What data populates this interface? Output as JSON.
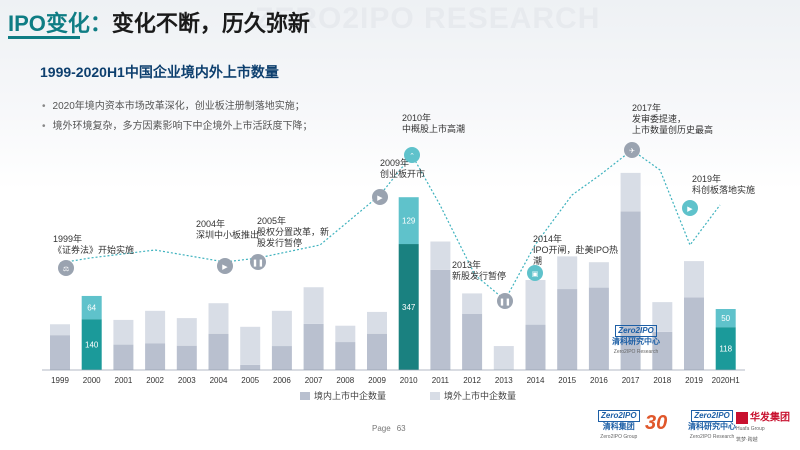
{
  "header": {
    "title_prefix": "IPO变化：",
    "title_rest": "变化不断，历久弥新",
    "watermark": "ZERO2IPO RESEARCH"
  },
  "chart_data": {
    "type": "bar",
    "title": "1999-2020H1中国企业境内外上市数量",
    "categories": [
      "1999",
      "2000",
      "2001",
      "2002",
      "2003",
      "2004",
      "2005",
      "2006",
      "2007",
      "2008",
      "2009",
      "2010",
      "2011",
      "2012",
      "2013",
      "2014",
      "2015",
      "2016",
      "2017",
      "2018",
      "2019",
      "2020H1"
    ],
    "series": [
      {
        "name": "境内上市中企数量",
        "values": [
          96,
          140,
          70,
          73,
          67,
          100,
          14,
          66,
          127,
          77,
          100,
          347,
          276,
          155,
          0,
          125,
          223,
          227,
          437,
          105,
          200,
          118
        ]
      },
      {
        "name": "境外上市中企数量",
        "values": [
          30,
          64,
          68,
          90,
          76,
          84,
          105,
          97,
          101,
          45,
          60,
          129,
          78,
          56,
          66,
          123,
          90,
          70,
          106,
          82,
          100,
          50
        ]
      }
    ],
    "data_labels": {
      "2000": {
        "domestic": "140",
        "overseas": "64"
      },
      "2010": {
        "domestic": "347",
        "overseas": "129"
      },
      "2020H1": {
        "domestic": "118",
        "overseas": "50"
      }
    },
    "ylim": [
      0,
      560
    ],
    "legend": "bottom",
    "colors": {
      "domestic": "#b9c0cf",
      "overseas": "#d8dde6",
      "highlight_domestic": "#1b9a9a",
      "highlight_overseas": "#5fc2cb",
      "highlight_2010_domestic": "#1a8180",
      "trend_line": "#29aab7"
    },
    "annotations": [
      {
        "year": "1999",
        "lines": [
          "1999年",
          "《证券法》开始实施"
        ],
        "icon": "scale-icon"
      },
      {
        "year": "2004",
        "lines": [
          "2004年",
          "深圳中小板推出"
        ],
        "icon": "play-icon"
      },
      {
        "year": "2005",
        "lines": [
          "2005年",
          "股权分置改革，新",
          "股发行暂停"
        ],
        "icon": "pause-icon"
      },
      {
        "year": "2009",
        "lines": [
          "2009年",
          "创业板开市"
        ],
        "icon": "play-icon"
      },
      {
        "year": "2010",
        "lines": [
          "2010年",
          "中概股上市高潮"
        ],
        "icon": "chevron-up-icon"
      },
      {
        "year": "2013",
        "lines": [
          "2013年",
          "新股发行暂停"
        ],
        "icon": "pause-icon"
      },
      {
        "year": "2014",
        "lines": [
          "2014年",
          "IPO开闸，赴美IPO热",
          "潮"
        ],
        "icon": "gift-icon"
      },
      {
        "year": "2017",
        "lines": [
          "2017年",
          "发审委提速，",
          "上市数量创历史最高"
        ],
        "icon": "rocket-icon"
      },
      {
        "year": "2019",
        "lines": [
          "2019年",
          "科创板落地实施"
        ],
        "icon": "play-icon"
      }
    ]
  },
  "bullets": [
    "2020年境内资本市场改革深化，创业板注册制落地实施；",
    "境外环境复杂，多方因素影响下中企境外上市活跃度下降；"
  ],
  "overlay_logo": {
    "badge": "Zero2IPO",
    "name": "清科研究中心",
    "sub": "Zero2IPO Research"
  },
  "footer": {
    "page_label": "Page",
    "page_number": "63",
    "logo1_badge": "Zero2IPO",
    "logo1_name": "清科集团",
    "logo1_sub": "Zero2IPO Group",
    "logo2_text": "30",
    "logo3_badge": "Zero2IPO",
    "logo3_name": "清科研究中心",
    "logo3_sub": "Zero2IPO Research",
    "logo4_name": "华发集团",
    "logo4_sub": "Huafa Group",
    "logo4_tag": "筑梦·跨越"
  }
}
